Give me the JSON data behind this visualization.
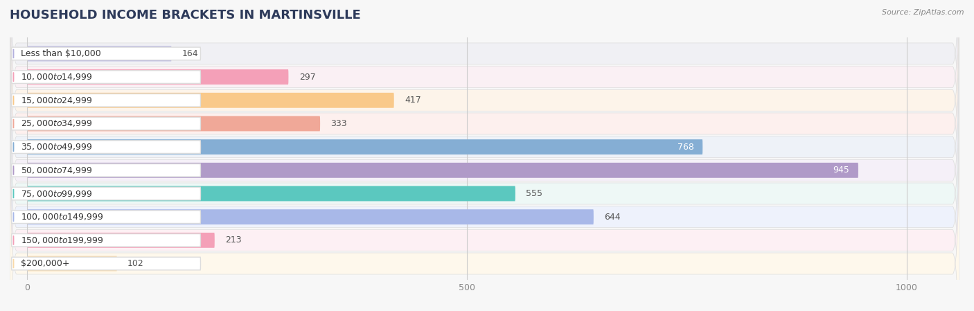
{
  "title": "HOUSEHOLD INCOME BRACKETS IN MARTINSVILLE",
  "source": "Source: ZipAtlas.com",
  "categories": [
    "Less than $10,000",
    "$10,000 to $14,999",
    "$15,000 to $24,999",
    "$25,000 to $34,999",
    "$35,000 to $49,999",
    "$50,000 to $74,999",
    "$75,000 to $99,999",
    "$100,000 to $149,999",
    "$150,000 to $199,999",
    "$200,000+"
  ],
  "values": [
    164,
    297,
    417,
    333,
    768,
    945,
    555,
    644,
    213,
    102
  ],
  "bar_colors": [
    "#b3b0de",
    "#f4a0b8",
    "#f9c98a",
    "#f0a898",
    "#85aed4",
    "#b09ac8",
    "#5bc8bf",
    "#a8b8e8",
    "#f4a0b8",
    "#f9d9a8"
  ],
  "row_bg_colors": [
    "#f0f0f4",
    "#faf0f4",
    "#fdf4ea",
    "#fdf0ee",
    "#eef2f8",
    "#f5f0f8",
    "#eef8f6",
    "#eef2fc",
    "#fdf0f4",
    "#fef8ec"
  ],
  "xlim": [
    -20,
    1060
  ],
  "xticks": [
    0,
    500,
    1000
  ],
  "background_color": "#f7f7f7",
  "bar_bg_color": "#ffffff",
  "title_fontsize": 13,
  "label_fontsize": 9,
  "value_fontsize": 9,
  "value_inside_threshold": 700
}
